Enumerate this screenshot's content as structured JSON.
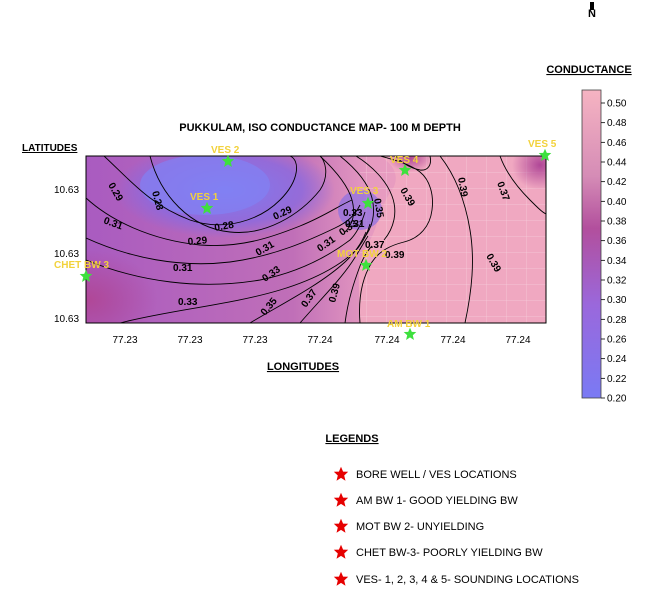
{
  "north_arrow": {
    "label": "N"
  },
  "map": {
    "title": "PUKKULAM, ISO CONDUCTANCE MAP- 100 M DEPTH",
    "y_axis_title": "LATITUDES",
    "x_axis_title": "LONGITUDES",
    "y_ticks": [
      "10.63",
      "10.63",
      "10.63"
    ],
    "x_ticks": [
      "77.23",
      "77.23",
      "77.23",
      "77.24",
      "77.24",
      "77.24",
      "77.24"
    ]
  },
  "contour_labels": [
    "0.29",
    "0.28",
    "0.31",
    "0.28",
    "0.29",
    "0.29",
    "0.31",
    "0.31",
    "0.31",
    "0.33",
    "0.33",
    "0.33",
    "0.35",
    "0.37",
    "0.39",
    "0.31",
    "0.33",
    "0.35",
    "0.37",
    "0.39",
    "0.39",
    "0.37",
    "0.39",
    "0.39"
  ],
  "sites": [
    {
      "label": "VES 2"
    },
    {
      "label": "VES 1"
    },
    {
      "label": "VES 3"
    },
    {
      "label": "VES 4"
    },
    {
      "label": "VES 5"
    },
    {
      "label": "CHET BW 3"
    },
    {
      "label": "MOT BW 2"
    },
    {
      "label": "AM BW 1"
    }
  ],
  "colorbar": {
    "title": "CONDUCTANCE",
    "ticks": [
      "0.50",
      "0.48",
      "0.46",
      "0.44",
      "0.42",
      "0.40",
      "0.38",
      "0.36",
      "0.34",
      "0.32",
      "0.30",
      "0.28",
      "0.26",
      "0.24",
      "0.22",
      "0.20"
    ],
    "colors": {
      "low": "#7878f2",
      "mid_low": "#9163d6",
      "mid": "#b0509a",
      "mid_high": "#d98fb9",
      "high": "#f4a0b6",
      "top": "#f7b8c4"
    }
  },
  "legend": {
    "title": "LEGENDS",
    "items": [
      "BORE WELL / VES LOCATIONS",
      "AM BW 1- GOOD YIELDING BW",
      "MOT BW 2- UNYIELDING",
      "CHET BW-3- POORLY YIELDING BW",
      "VES- 1, 2, 3, 4 & 5- SOUNDING LOCATIONS"
    ]
  },
  "colors": {
    "site_label": "#f2d23c",
    "site_star": "#3ee03e",
    "legend_star": "#e60000",
    "title_text": "#000000"
  }
}
